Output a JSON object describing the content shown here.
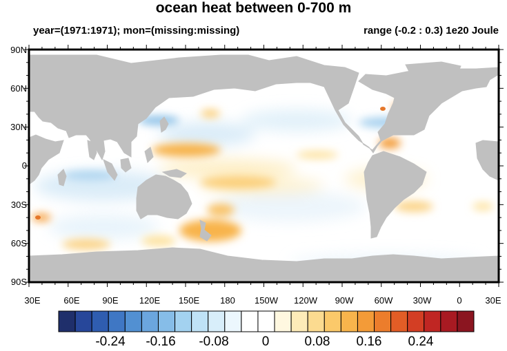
{
  "title": "ocean heat between 0-700 m",
  "subtitle_left": "year=(1971:1971); mon=(missing:missing)",
  "subtitle_right": "range (-0.2 : 0.3) 1e20 Joule",
  "lat_labels": [
    "90N",
    "60N",
    "30N",
    "0",
    "30S",
    "60S",
    "90S"
  ],
  "lon_labels": [
    "30E",
    "60E",
    "90E",
    "120E",
    "150E",
    "180",
    "150W",
    "120W",
    "90W",
    "60W",
    "30W",
    "0",
    "30E"
  ],
  "colorbar": {
    "colors": [
      "#1f2f6b",
      "#27479a",
      "#2f5db0",
      "#3f77c4",
      "#5290d2",
      "#6ba6de",
      "#86bde8",
      "#a3d2f0",
      "#bfe2f6",
      "#d8eefa",
      "#ecf7fd",
      "#ffffff",
      "#ffffff",
      "#fff8e0",
      "#fdebb8",
      "#fcdb90",
      "#fbc96a",
      "#f8b44c",
      "#f39b38",
      "#ec7d2c",
      "#e25d26",
      "#d33e24",
      "#c02623",
      "#a81a22",
      "#8b1520"
    ],
    "labels": [
      "-0.24",
      "-0.16",
      "-0.08",
      "0",
      "0.08",
      "0.16",
      "0.24"
    ]
  },
  "map": {
    "land_color": "#c0c0c0",
    "ocean_color": "#ffffff"
  }
}
